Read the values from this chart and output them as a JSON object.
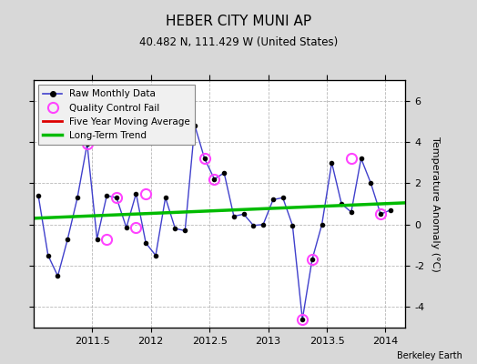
{
  "title": "HEBER CITY MUNI AP",
  "subtitle": "40.482 N, 111.429 W (United States)",
  "ylabel": "Temperature Anomaly (°C)",
  "watermark": "Berkeley Earth",
  "xlim": [
    2011.0,
    2014.17
  ],
  "ylim": [
    -5.0,
    7.0
  ],
  "yticks": [
    -4,
    -2,
    0,
    2,
    4,
    6
  ],
  "xticks": [
    2011.5,
    2012.0,
    2012.5,
    2013.0,
    2013.5,
    2014.0
  ],
  "xtick_labels": [
    "2011.5",
    "2012",
    "2012.5",
    "2013",
    "2013.5",
    "2014"
  ],
  "background_color": "#d8d8d8",
  "plot_bg_color": "#ffffff",
  "raw_x": [
    2011.042,
    2011.125,
    2011.208,
    2011.292,
    2011.375,
    2011.458,
    2011.542,
    2011.625,
    2011.708,
    2011.792,
    2011.875,
    2011.958,
    2012.042,
    2012.125,
    2012.208,
    2012.292,
    2012.375,
    2012.458,
    2012.542,
    2012.625,
    2012.708,
    2012.792,
    2012.875,
    2012.958,
    2013.042,
    2013.125,
    2013.208,
    2013.292,
    2013.375,
    2013.458,
    2013.542,
    2013.625,
    2013.708,
    2013.792,
    2013.875,
    2013.958,
    2014.042
  ],
  "raw_y": [
    1.4,
    -1.5,
    -2.5,
    -0.7,
    1.3,
    3.9,
    -0.7,
    1.4,
    1.3,
    -0.15,
    1.5,
    -0.9,
    -1.5,
    1.3,
    -0.2,
    -0.3,
    4.8,
    3.2,
    2.2,
    2.5,
    0.4,
    0.5,
    -0.05,
    0.0,
    1.2,
    1.3,
    -0.05,
    -4.6,
    -1.7,
    0.0,
    3.0,
    1.0,
    0.6,
    3.2,
    2.0,
    0.5,
    0.7
  ],
  "qc_fail_x": [
    2011.458,
    2011.625,
    2011.708,
    2011.875,
    2011.958,
    2012.458,
    2012.542,
    2013.292,
    2013.375,
    2013.708,
    2013.958
  ],
  "qc_fail_y": [
    3.9,
    -0.7,
    1.3,
    -0.15,
    1.5,
    3.2,
    2.2,
    -4.6,
    -1.7,
    3.2,
    0.5
  ],
  "trend_x": [
    2011.0,
    2014.17
  ],
  "trend_y": [
    0.3,
    1.05
  ],
  "raw_color": "#4040cc",
  "raw_marker_color": "#000000",
  "qc_color": "#ff44ff",
  "trend_color": "#00bb00",
  "ma_color": "#dd0000",
  "grid_color": "#b0b0b0"
}
